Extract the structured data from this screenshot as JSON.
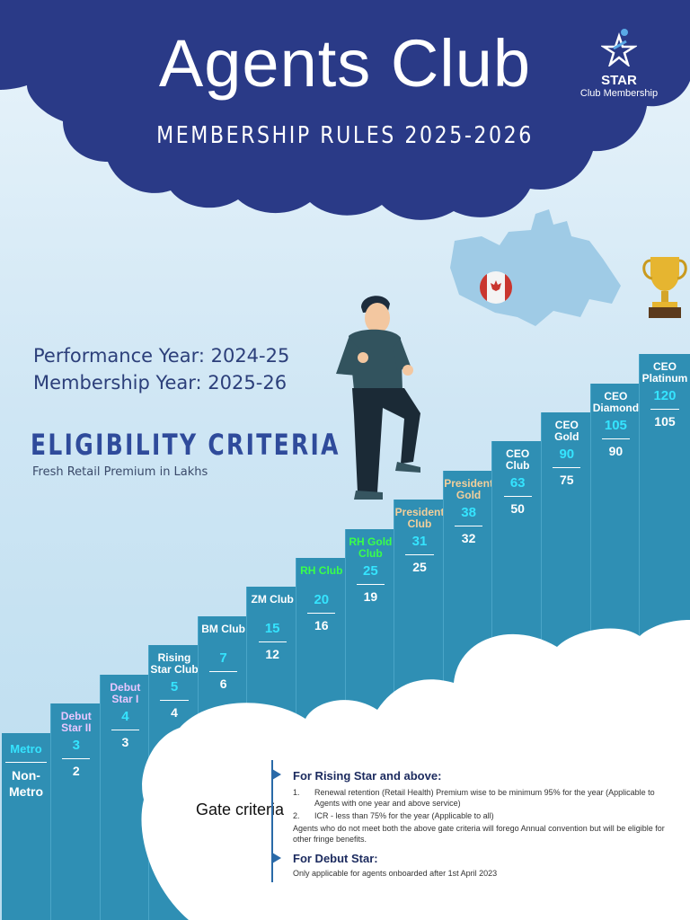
{
  "header": {
    "title": "Agents Club",
    "subtitle": "MEMBERSHIP RULES 2025-2026",
    "logo_brand": "STAR",
    "logo_tag": "Club Membership"
  },
  "years": {
    "performance": "Performance Year: 2024-25",
    "membership": "Membership Year: 2025-26"
  },
  "eligibility": {
    "title": "ELIGIBILITY CRITERIA",
    "subtitle": "Fresh Retail Premium in Lakhs"
  },
  "legend": {
    "metro": "Metro",
    "non_metro": "Non-Metro"
  },
  "steps": [
    {
      "name": "Debut Star II",
      "metro": "3",
      "non_metro": "2",
      "color": "#e8c7ff"
    },
    {
      "name": "Debut Star I",
      "metro": "4",
      "non_metro": "3",
      "color": "#e8c7ff"
    },
    {
      "name": "Rising Star Club",
      "metro": "5",
      "non_metro": "4",
      "color": "#ffffff"
    },
    {
      "name": "BM Club",
      "metro": "7",
      "non_metro": "6",
      "color": "#ffffff"
    },
    {
      "name": "ZM Club",
      "metro": "15",
      "non_metro": "12",
      "color": "#ffffff"
    },
    {
      "name": "RH Club",
      "metro": "20",
      "non_metro": "16",
      "color": "#39ff4a"
    },
    {
      "name": "RH Gold Club",
      "metro": "25",
      "non_metro": "19",
      "color": "#39ff4a"
    },
    {
      "name": "President Club",
      "metro": "31",
      "non_metro": "25",
      "color": "#f3cf9a"
    },
    {
      "name": "President Gold",
      "metro": "38",
      "non_metro": "32",
      "color": "#f3cf9a"
    },
    {
      "name": "CEO Club",
      "metro": "63",
      "non_metro": "50",
      "color": "#ffffff"
    },
    {
      "name": "CEO Gold",
      "metro": "90",
      "non_metro": "75",
      "color": "#ffffff"
    },
    {
      "name": "CEO Diamond",
      "metro": "105",
      "non_metro": "90",
      "color": "#ffffff"
    },
    {
      "name": "CEO Platinum",
      "metro": "120",
      "non_metro": "105",
      "color": "#ffffff"
    }
  ],
  "gate": {
    "label": "Gate criteria",
    "section1_title": "For Rising Star and above:",
    "item1_num": "1.",
    "item1": "Renewal retention (Retail Health) Premium wise to be minimum 95% for the year (Applicable to Agents with one year and above service)",
    "item2_num": "2.",
    "item2": "ICR - less than 75% for the year (Applicable to all)",
    "note": "Agents who do not meet both the above gate criteria will forego Annual convention but will be eligible for other fringe benefits.",
    "section2_title": "For Debut Star:",
    "section2_text": "Only applicable for agents onboarded after 1st April 2023"
  },
  "icons": [
    "star-logo-icon",
    "canada-map-icon",
    "canada-flag-icon",
    "trophy-icon",
    "climbing-man-illustration"
  ],
  "colors": {
    "header_navy": "#2a3a87",
    "step_blue": "#2f8fb4",
    "metro_cyan": "#35e4ff"
  }
}
